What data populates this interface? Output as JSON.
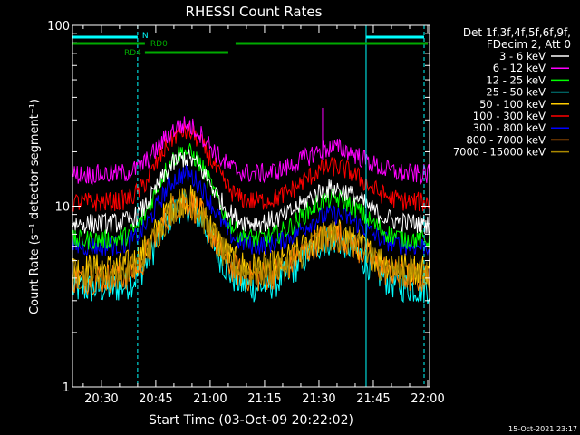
{
  "chart_data": {
    "type": "line",
    "title": "RHESSI Count Rates",
    "xlabel": "Start Time (03-Oct-09 20:22:02)",
    "ylabel": "Count Rate (s⁻¹ detector segment⁻¹)",
    "y_scale": "log",
    "ylim": [
      1,
      100
    ],
    "xlim": [
      "20:22:02",
      "22:00:30"
    ],
    "x_tick_labels": [
      "20:30",
      "20:45",
      "21:00",
      "21:15",
      "21:30",
      "21:45",
      "22:00"
    ],
    "y_tick_labels": [
      "1",
      "10",
      "100"
    ],
    "grid": false,
    "legend_position": "right",
    "legend_header": [
      "Det 1f,3f,4f,5f,6f,9f,",
      "FDecim 2, Att 0"
    ],
    "series": [
      {
        "name": "3 - 6 keV",
        "color": "#ffffff",
        "base": 8.0,
        "peak1": 18.5,
        "peak2": 12.5
      },
      {
        "name": "6 - 12 keV",
        "color": "#ff00ff",
        "base": 15.0,
        "peak1": 28.0,
        "peak2": 21.0
      },
      {
        "name": "12 - 25 keV",
        "color": "#00ff00",
        "base": 6.5,
        "peak1": 20.0,
        "peak2": 11.0
      },
      {
        "name": "25 - 50 keV",
        "color": "#00ffff",
        "base": 3.5,
        "peak1": 10.0,
        "peak2": 6.5
      },
      {
        "name": "50 - 100 keV",
        "color": "#ffcc00",
        "base": 4.5,
        "peak1": 11.0,
        "peak2": 7.0
      },
      {
        "name": "100 - 300 keV",
        "color": "#ff0000",
        "base": 10.5,
        "peak1": 26.0,
        "peak2": 16.5
      },
      {
        "name": "300 - 800 keV",
        "color": "#0000ff",
        "base": 6.0,
        "peak1": 15.0,
        "peak2": 9.0
      },
      {
        "name": "800 - 7000 keV",
        "color": "#ff8000",
        "base": 4.0,
        "peak1": 10.5,
        "peak2": 6.8
      },
      {
        "name": "7000 - 15000 keV",
        "color": "#aa8800",
        "base": 4.2,
        "peak1": 10.5,
        "peak2": 6.8
      }
    ],
    "peaks": {
      "t1": "20:53",
      "t2": "21:34"
    },
    "flags": [
      {
        "label": "N",
        "color": "#00ffff",
        "row": 1,
        "intervals": [
          [
            "20:22:02",
            "20:40"
          ],
          [
            "21:43",
            "21:59"
          ]
        ]
      },
      {
        "label": "RD0",
        "color": "#00aa00",
        "row": 2,
        "intervals": [
          [
            "20:22:02",
            "20:42"
          ],
          [
            "21:07",
            "22:00"
          ]
        ]
      },
      {
        "label": "RD4",
        "color": "#00aa00",
        "row": 3,
        "intervals": [
          [
            "20:42",
            "21:05"
          ]
        ]
      }
    ],
    "vertical_lines": [
      {
        "time": "20:22:02",
        "color": "#00ffff",
        "style": "solid"
      },
      {
        "time": "20:40",
        "color": "#00ffff",
        "style": "dashed"
      },
      {
        "time": "21:43",
        "color": "#00ffff",
        "style": "solid"
      },
      {
        "time": "21:59",
        "color": "#00ffff",
        "style": "dashed"
      }
    ],
    "spike": {
      "time": "21:31",
      "value": 35,
      "color": "#ff00ff"
    }
  },
  "footer": {
    "timestamp": "15-Oct-2021 23:17"
  }
}
